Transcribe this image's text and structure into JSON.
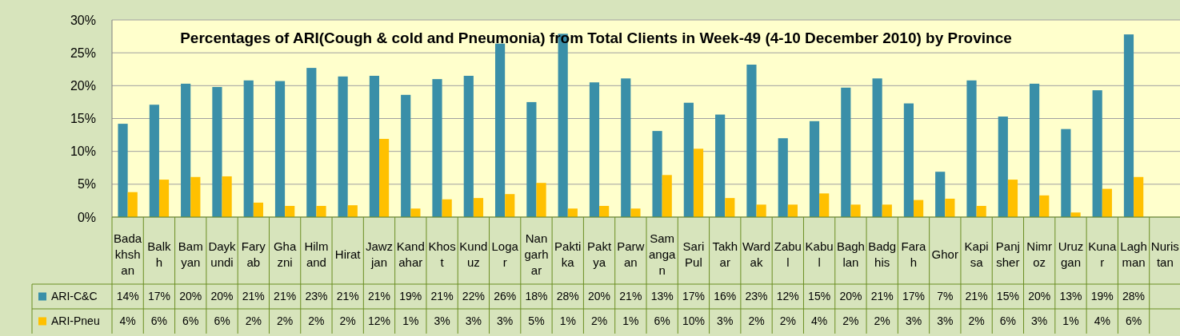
{
  "chart_data": {
    "type": "bar",
    "title": "Percentages of ARI(Cough & cold and Pneumonia)  from Total Clients in Week-49 (4-10 December 2010)  by Province",
    "categories": [
      "Badakhshan",
      "Balkh",
      "Bamyan",
      "Daykundi",
      "Faryab",
      "Ghazni",
      "Hilmand",
      "Hirat",
      "Jawzjan",
      "Kandahar",
      "Khost",
      "Kunduz",
      "Logar",
      "Nangarhar",
      "Paktika",
      "Paktya",
      "Parwan",
      "Samangan",
      "Sari Pul",
      "Takhar",
      "Wardak",
      "Zabul",
      "Kabul",
      "Baghlan",
      "Badghis",
      "Farah",
      "Ghor",
      "Kapisa",
      "Panjsher",
      "Nimroz",
      "Uruzgan",
      "Kunar",
      "Laghman",
      "Nuristan"
    ],
    "series": [
      {
        "name": "ARI-C&C",
        "color": "#3a8fa8",
        "values": [
          14.2,
          17.1,
          20.3,
          19.8,
          20.8,
          20.7,
          22.7,
          21.4,
          21.5,
          18.6,
          21.0,
          21.5,
          26.4,
          17.5,
          27.9,
          20.5,
          21.1,
          13.1,
          17.4,
          15.6,
          23.2,
          12.0,
          14.6,
          19.7,
          21.1,
          17.3,
          6.9,
          20.8,
          15.3,
          20.3,
          13.4,
          19.3,
          27.8,
          null
        ],
        "value_labels": [
          "14%",
          "17%",
          "20%",
          "20%",
          "21%",
          "21%",
          "23%",
          "21%",
          "21%",
          "19%",
          "21%",
          "22%",
          "26%",
          "18%",
          "28%",
          "20%",
          "21%",
          "13%",
          "17%",
          "16%",
          "23%",
          "12%",
          "15%",
          "20%",
          "21%",
          "17%",
          "7%",
          "21%",
          "15%",
          "20%",
          "13%",
          "19%",
          "28%",
          null
        ]
      },
      {
        "name": "ARI-Pneu",
        "color": "#ffc000",
        "values": [
          3.8,
          5.7,
          6.1,
          6.2,
          2.2,
          1.7,
          1.7,
          1.8,
          11.9,
          1.3,
          2.7,
          2.9,
          3.5,
          5.2,
          1.3,
          1.7,
          1.3,
          6.4,
          10.4,
          2.9,
          1.9,
          1.9,
          3.6,
          1.9,
          1.9,
          2.6,
          2.8,
          1.7,
          5.7,
          3.3,
          0.7,
          4.3,
          6.1,
          null
        ],
        "value_labels": [
          "4%",
          "6%",
          "6%",
          "6%",
          "2%",
          "2%",
          "2%",
          "2%",
          "12%",
          "1%",
          "3%",
          "3%",
          "3%",
          "5%",
          "1%",
          "2%",
          "1%",
          "6%",
          "10%",
          "3%",
          "2%",
          "2%",
          "4%",
          "2%",
          "2%",
          "3%",
          "3%",
          "2%",
          "6%",
          "3%",
          "1%",
          "4%",
          "6%",
          null
        ]
      }
    ],
    "ylim": [
      0,
      30
    ],
    "yticks": [
      {
        "value": 0,
        "label": "0%"
      },
      {
        "value": 5,
        "label": "5%"
      },
      {
        "value": 10,
        "label": "10%"
      },
      {
        "value": 15,
        "label": "15%"
      },
      {
        "value": 20,
        "label": "20%"
      },
      {
        "value": 25,
        "label": "25%"
      },
      {
        "value": 30,
        "label": "30%"
      }
    ],
    "grid": "y",
    "legend": "bottom"
  }
}
